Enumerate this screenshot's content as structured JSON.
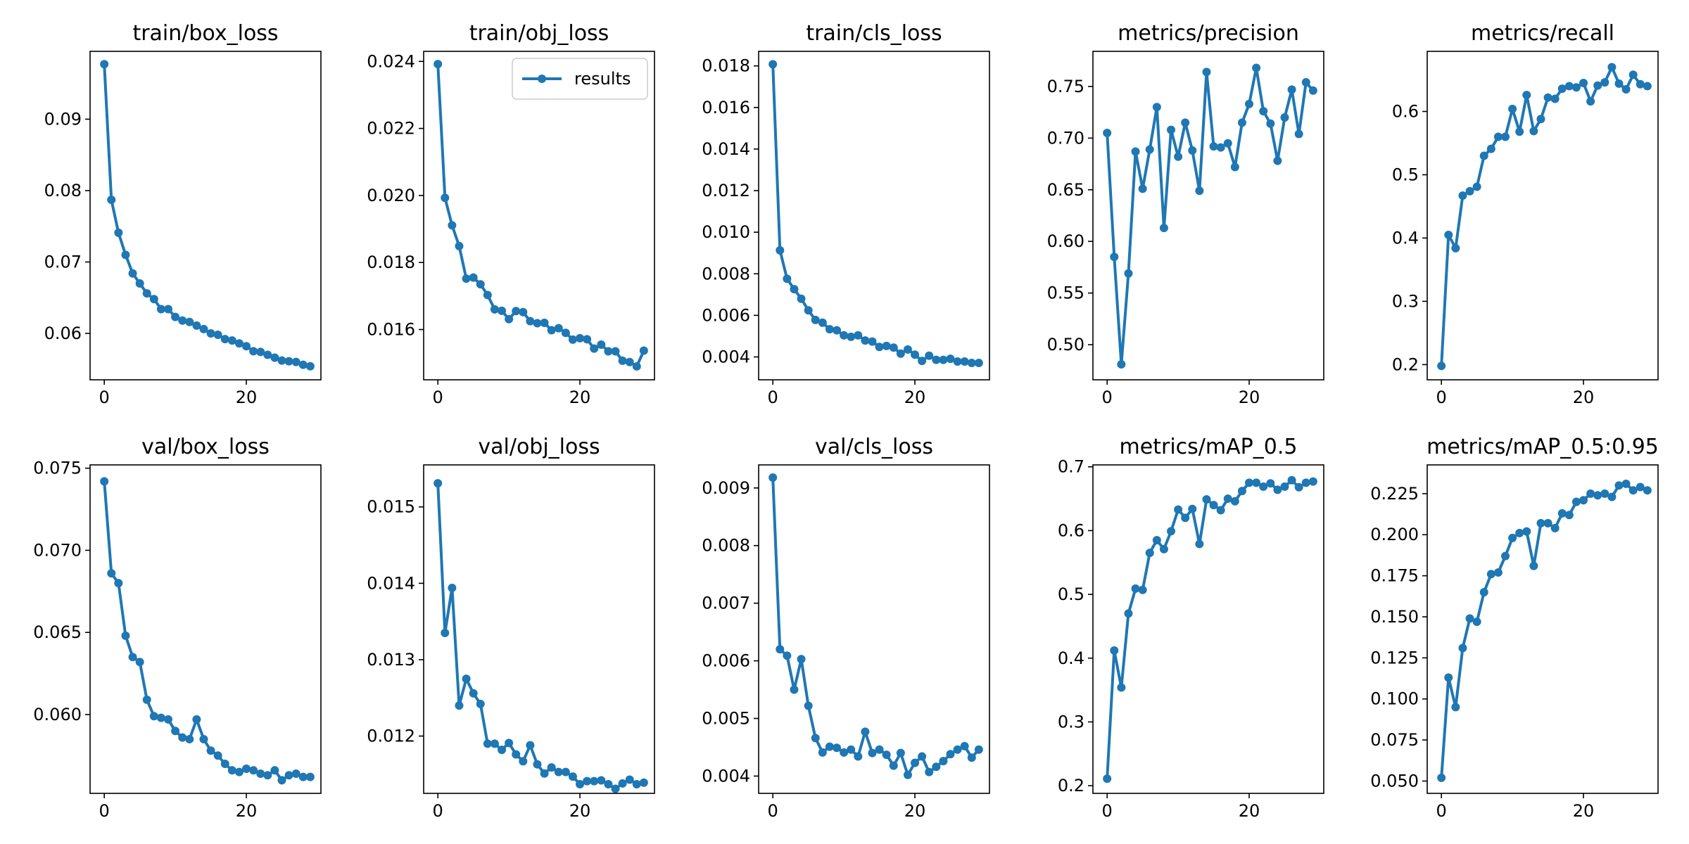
{
  "series_color": "#1f77b4",
  "legend": {
    "label": "results",
    "panel": "train/obj_loss",
    "placement": "upper right"
  },
  "chart_data": [
    {
      "type": "line",
      "title": "train/box_loss",
      "xlabel": "",
      "ylabel": "",
      "xlim": [
        -2,
        30.5
      ],
      "ylim": [
        0.0535,
        0.0995
      ],
      "xticks": [
        0,
        20
      ],
      "yticks": [
        0.06,
        0.07,
        0.08,
        0.09
      ],
      "series": [
        {
          "name": "results",
          "x": [
            0,
            1,
            2,
            3,
            4,
            5,
            6,
            7,
            8,
            9,
            10,
            11,
            12,
            13,
            14,
            15,
            16,
            17,
            18,
            19,
            20,
            21,
            22,
            23,
            24,
            25,
            26,
            27,
            28,
            29
          ],
          "y": [
            0.0977,
            0.0787,
            0.0741,
            0.071,
            0.0684,
            0.067,
            0.0656,
            0.0648,
            0.0634,
            0.0634,
            0.0623,
            0.0618,
            0.0616,
            0.0611,
            0.0606,
            0.06,
            0.0598,
            0.0592,
            0.059,
            0.0586,
            0.0582,
            0.0575,
            0.0574,
            0.057,
            0.0566,
            0.0562,
            0.0561,
            0.056,
            0.0556,
            0.0554
          ]
        }
      ]
    },
    {
      "type": "line",
      "title": "train/obj_loss",
      "xlabel": "",
      "ylabel": "",
      "xlim": [
        -2,
        30.5
      ],
      "ylim": [
        0.0145,
        0.0243
      ],
      "xticks": [
        0,
        20
      ],
      "yticks": [
        0.016,
        0.018,
        0.02,
        0.022,
        0.024
      ],
      "series": [
        {
          "name": "results",
          "x": [
            0,
            1,
            2,
            3,
            4,
            5,
            6,
            7,
            8,
            9,
            10,
            11,
            12,
            13,
            14,
            15,
            16,
            17,
            18,
            19,
            20,
            21,
            22,
            23,
            24,
            25,
            26,
            27,
            28,
            29
          ],
          "y": [
            0.02392,
            0.01993,
            0.01911,
            0.01849,
            0.01752,
            0.01755,
            0.01735,
            0.01703,
            0.0166,
            0.01656,
            0.01631,
            0.01655,
            0.01652,
            0.01625,
            0.01619,
            0.0162,
            0.01598,
            0.01604,
            0.0159,
            0.0157,
            0.01574,
            0.01571,
            0.01543,
            0.01555,
            0.01535,
            0.01535,
            0.01507,
            0.01503,
            0.0149,
            0.01537
          ]
        }
      ]
    },
    {
      "type": "line",
      "title": "train/cls_loss",
      "xlabel": "",
      "ylabel": "",
      "xlim": [
        -2,
        30.5
      ],
      "ylim": [
        0.0029,
        0.0187
      ],
      "xticks": [
        0,
        20
      ],
      "yticks": [
        0.004,
        0.006,
        0.008,
        0.01,
        0.012,
        0.014,
        0.016,
        0.018
      ],
      "series": [
        {
          "name": "results",
          "x": [
            0,
            1,
            2,
            3,
            4,
            5,
            6,
            7,
            8,
            9,
            10,
            11,
            12,
            13,
            14,
            15,
            16,
            17,
            18,
            19,
            20,
            21,
            22,
            23,
            24,
            25,
            26,
            27,
            28,
            29
          ],
          "y": [
            0.01808,
            0.00913,
            0.00776,
            0.00726,
            0.0068,
            0.00624,
            0.00578,
            0.00565,
            0.00533,
            0.00528,
            0.00504,
            0.00497,
            0.00504,
            0.00479,
            0.00474,
            0.00448,
            0.00453,
            0.00445,
            0.00416,
            0.00436,
            0.00411,
            0.00381,
            0.00406,
            0.00386,
            0.00386,
            0.00391,
            0.00378,
            0.00378,
            0.00371,
            0.00371
          ]
        }
      ]
    },
    {
      "type": "line",
      "title": "metrics/precision",
      "xlabel": "",
      "ylabel": "",
      "xlim": [
        -2,
        30.5
      ],
      "ylim": [
        0.466,
        0.784
      ],
      "xticks": [
        0,
        20
      ],
      "yticks": [
        0.5,
        0.55,
        0.6,
        0.65,
        0.7,
        0.75
      ],
      "series": [
        {
          "name": "results",
          "x": [
            0,
            1,
            2,
            3,
            4,
            5,
            6,
            7,
            8,
            9,
            10,
            11,
            12,
            13,
            14,
            15,
            16,
            17,
            18,
            19,
            20,
            21,
            22,
            23,
            24,
            25,
            26,
            27,
            28,
            29
          ],
          "y": [
            0.705,
            0.585,
            0.481,
            0.569,
            0.687,
            0.651,
            0.689,
            0.73,
            0.613,
            0.708,
            0.682,
            0.715,
            0.688,
            0.649,
            0.764,
            0.692,
            0.691,
            0.695,
            0.672,
            0.715,
            0.733,
            0.768,
            0.726,
            0.714,
            0.678,
            0.72,
            0.747,
            0.704,
            0.754,
            0.746
          ]
        }
      ]
    },
    {
      "type": "line",
      "title": "metrics/recall",
      "xlabel": "",
      "ylabel": "",
      "xlim": [
        -2,
        30.5
      ],
      "ylim": [
        0.176,
        0.695
      ],
      "xticks": [
        0,
        20
      ],
      "yticks": [
        0.2,
        0.3,
        0.4,
        0.5,
        0.6
      ],
      "series": [
        {
          "name": "results",
          "x": [
            0,
            1,
            2,
            3,
            4,
            5,
            6,
            7,
            8,
            9,
            10,
            11,
            12,
            13,
            14,
            15,
            16,
            17,
            18,
            19,
            20,
            21,
            22,
            23,
            24,
            25,
            26,
            27,
            28,
            29
          ],
          "y": [
            0.198,
            0.405,
            0.384,
            0.467,
            0.474,
            0.481,
            0.53,
            0.541,
            0.56,
            0.56,
            0.604,
            0.568,
            0.626,
            0.569,
            0.588,
            0.622,
            0.62,
            0.636,
            0.64,
            0.638,
            0.645,
            0.616,
            0.641,
            0.646,
            0.67,
            0.644,
            0.635,
            0.658,
            0.643,
            0.64
          ]
        }
      ]
    },
    {
      "type": "line",
      "title": "val/box_loss",
      "xlabel": "",
      "ylabel": "",
      "xlim": [
        -2,
        30.5
      ],
      "ylim": [
        0.0552,
        0.0752
      ],
      "xticks": [
        0,
        20
      ],
      "yticks": [
        0.06,
        0.065,
        0.07,
        0.075
      ],
      "series": [
        {
          "name": "results",
          "x": [
            0,
            1,
            2,
            3,
            4,
            5,
            6,
            7,
            8,
            9,
            10,
            11,
            12,
            13,
            14,
            15,
            16,
            17,
            18,
            19,
            20,
            21,
            22,
            23,
            24,
            25,
            26,
            27,
            28,
            29
          ],
          "y": [
            0.0742,
            0.0686,
            0.068,
            0.0648,
            0.0635,
            0.0632,
            0.0609,
            0.0599,
            0.0598,
            0.0597,
            0.059,
            0.0586,
            0.0585,
            0.0597,
            0.0585,
            0.0578,
            0.0575,
            0.057,
            0.0566,
            0.0565,
            0.0567,
            0.0566,
            0.0564,
            0.0563,
            0.0566,
            0.056,
            0.0563,
            0.0564,
            0.0562,
            0.0562
          ]
        }
      ]
    },
    {
      "type": "line",
      "title": "val/obj_loss",
      "xlabel": "",
      "ylabel": "",
      "xlim": [
        -2,
        30.5
      ],
      "ylim": [
        0.01125,
        0.01555
      ],
      "xticks": [
        0,
        20
      ],
      "yticks": [
        0.012,
        0.013,
        0.014,
        0.015
      ],
      "series": [
        {
          "name": "results",
          "x": [
            0,
            1,
            2,
            3,
            4,
            5,
            6,
            7,
            8,
            9,
            10,
            11,
            12,
            13,
            14,
            15,
            16,
            17,
            18,
            19,
            20,
            21,
            22,
            23,
            24,
            25,
            26,
            27,
            28,
            29
          ],
          "y": [
            0.01531,
            0.01335,
            0.01394,
            0.0124,
            0.01275,
            0.01256,
            0.01242,
            0.0119,
            0.0119,
            0.01182,
            0.01191,
            0.01176,
            0.01167,
            0.01188,
            0.01163,
            0.01151,
            0.01159,
            0.01153,
            0.01153,
            0.01147,
            0.01137,
            0.01141,
            0.01141,
            0.01142,
            0.01137,
            0.01131,
            0.01138,
            0.01143,
            0.01137,
            0.01139
          ]
        }
      ]
    },
    {
      "type": "line",
      "title": "val/cls_loss",
      "xlabel": "",
      "ylabel": "",
      "xlim": [
        -2,
        30.5
      ],
      "ylim": [
        0.0037,
        0.0094
      ],
      "xticks": [
        0,
        20
      ],
      "yticks": [
        0.004,
        0.005,
        0.006,
        0.007,
        0.008,
        0.009
      ],
      "series": [
        {
          "name": "results",
          "x": [
            0,
            1,
            2,
            3,
            4,
            5,
            6,
            7,
            8,
            9,
            10,
            11,
            12,
            13,
            14,
            15,
            16,
            17,
            18,
            19,
            20,
            21,
            22,
            23,
            24,
            25,
            26,
            27,
            28,
            29
          ],
          "y": [
            0.00918,
            0.0062,
            0.00609,
            0.0055,
            0.00603,
            0.00522,
            0.00466,
            0.00441,
            0.00451,
            0.00449,
            0.00441,
            0.00446,
            0.00434,
            0.00477,
            0.0044,
            0.00446,
            0.00437,
            0.00418,
            0.0044,
            0.00402,
            0.00423,
            0.00434,
            0.00407,
            0.00416,
            0.00426,
            0.00438,
            0.00446,
            0.00452,
            0.00432,
            0.00446
          ]
        }
      ]
    },
    {
      "type": "line",
      "title": "metrics/mAP_0.5",
      "xlabel": "",
      "ylabel": "",
      "xlim": [
        -2,
        30.5
      ],
      "ylim": [
        0.188,
        0.703
      ],
      "xticks": [
        0,
        20
      ],
      "yticks": [
        0.2,
        0.3,
        0.4,
        0.5,
        0.6,
        0.7
      ],
      "series": [
        {
          "name": "results",
          "x": [
            0,
            1,
            2,
            3,
            4,
            5,
            6,
            7,
            8,
            9,
            10,
            11,
            12,
            13,
            14,
            15,
            16,
            17,
            18,
            19,
            20,
            21,
            22,
            23,
            24,
            25,
            26,
            27,
            28,
            29
          ],
          "y": [
            0.211,
            0.412,
            0.354,
            0.47,
            0.509,
            0.507,
            0.565,
            0.585,
            0.571,
            0.599,
            0.633,
            0.62,
            0.634,
            0.579,
            0.649,
            0.64,
            0.632,
            0.65,
            0.646,
            0.662,
            0.675,
            0.675,
            0.669,
            0.674,
            0.664,
            0.669,
            0.679,
            0.668,
            0.675,
            0.677
          ]
        }
      ]
    },
    {
      "type": "line",
      "title": "metrics/mAP_0.5:0.95",
      "xlabel": "",
      "ylabel": "",
      "xlim": [
        -2,
        30.5
      ],
      "ylim": [
        0.0425,
        0.2425
      ],
      "xticks": [
        0,
        20
      ],
      "yticks": [
        0.05,
        0.075,
        0.1,
        0.125,
        0.15,
        0.175,
        0.2,
        0.225
      ],
      "series": [
        {
          "name": "results",
          "x": [
            0,
            1,
            2,
            3,
            4,
            5,
            6,
            7,
            8,
            9,
            10,
            11,
            12,
            13,
            14,
            15,
            16,
            17,
            18,
            19,
            20,
            21,
            22,
            23,
            24,
            25,
            26,
            27,
            28,
            29
          ],
          "y": [
            0.052,
            0.113,
            0.095,
            0.131,
            0.149,
            0.147,
            0.165,
            0.176,
            0.177,
            0.187,
            0.198,
            0.201,
            0.202,
            0.181,
            0.207,
            0.207,
            0.204,
            0.213,
            0.212,
            0.22,
            0.221,
            0.225,
            0.224,
            0.225,
            0.223,
            0.23,
            0.231,
            0.227,
            0.229,
            0.227
          ]
        }
      ]
    }
  ]
}
